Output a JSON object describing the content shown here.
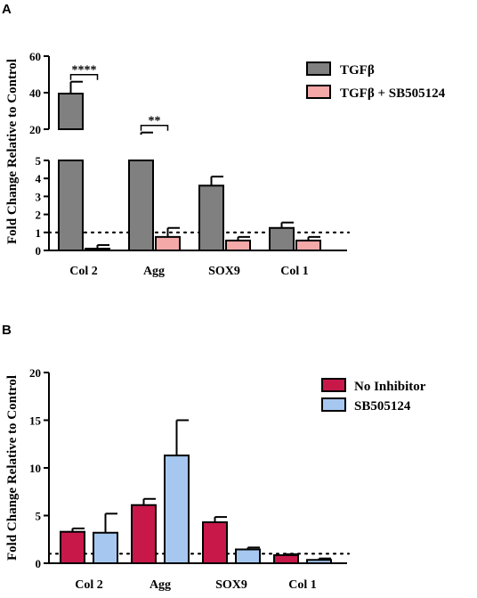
{
  "chart_data": [
    {
      "type": "bar",
      "panel": "A",
      "ylabel": "Fold Change Relative to Control",
      "categories": [
        "Col 2",
        "Agg",
        "SOX9",
        "Col 1"
      ],
      "series": [
        {
          "name": "TGFβ",
          "color": "#808080",
          "values": [
            39.5,
            17,
            3.6,
            1.25
          ],
          "errors": [
            6.5,
            1.2,
            0.5,
            0.3
          ]
        },
        {
          "name": "TGFβ + SB505124",
          "color": "#f4a8a8",
          "values": [
            0.1,
            0.75,
            0.55,
            0.55
          ],
          "errors": [
            0.2,
            0.5,
            0.2,
            0.2
          ]
        }
      ],
      "yaxis": {
        "broken": true,
        "upper": {
          "range": [
            20,
            60
          ],
          "ticks": [
            "20",
            "40",
            "60"
          ]
        },
        "lower": {
          "range": [
            0,
            5
          ],
          "ticks": [
            "0",
            "1",
            "2",
            "3",
            "4",
            "5"
          ]
        }
      },
      "reference_line": 1,
      "significance": [
        {
          "category": "Col 2",
          "label": "****"
        },
        {
          "category": "Agg",
          "label": "**"
        }
      ],
      "legend_position": "top-right"
    },
    {
      "type": "bar",
      "panel": "B",
      "ylabel": "Fold Change Relative to Control",
      "categories": [
        "Col 2",
        "Agg",
        "SOX9",
        "Col 1"
      ],
      "series": [
        {
          "name": "No Inhibitor",
          "color": "#c8184a",
          "values": [
            3.3,
            6.1,
            4.3,
            0.85
          ],
          "errors": [
            0.35,
            0.65,
            0.55,
            0.1
          ]
        },
        {
          "name": "SB505124",
          "color": "#a6c8f0",
          "values": [
            3.2,
            11.3,
            1.45,
            0.35
          ],
          "errors": [
            2.0,
            3.7,
            0.2,
            0.15
          ]
        }
      ],
      "yaxis": {
        "range": [
          0,
          20
        ],
        "ticks": [
          "0",
          "5",
          "10",
          "15",
          "20"
        ]
      },
      "reference_line": 1,
      "legend_position": "top-right"
    }
  ]
}
